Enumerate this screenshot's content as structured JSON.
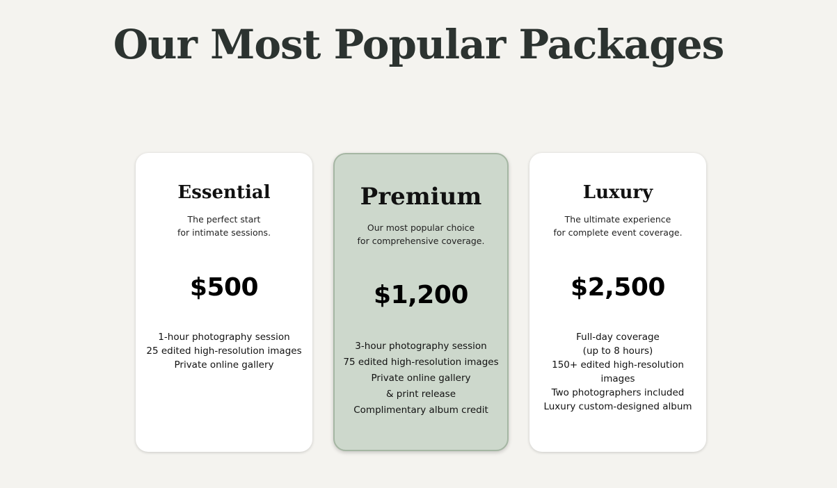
{
  "heading": "Our Most Popular Packages",
  "colors": {
    "background": "#f4f3ef",
    "card": "#ffffff",
    "featured_card": "#cdd8cc",
    "heading": "#2c3330"
  },
  "packages": [
    {
      "name": "Essential",
      "description": "The perfect start\nfor intimate sessions.",
      "price": "$500",
      "features": [
        "1-hour photography session",
        "25 edited high-resolution images",
        "Private online gallery"
      ]
    },
    {
      "name": "Premium",
      "description": "Our most popular choice\nfor comprehensive coverage.",
      "price": "$1,200",
      "features": [
        "3-hour photography session",
        "75 edited high-resolution images",
        "Private online gallery\n& print release",
        "Complimentary album credit"
      ]
    },
    {
      "name": "Luxury",
      "description": "The ultimate experience\nfor complete event coverage.",
      "price": "$2,500",
      "features": [
        "Full-day coverage\n(up to 8 hours)",
        "150+ edited high-resolution\nimages",
        "Two photographers included",
        "Luxury custom-designed album"
      ]
    }
  ]
}
